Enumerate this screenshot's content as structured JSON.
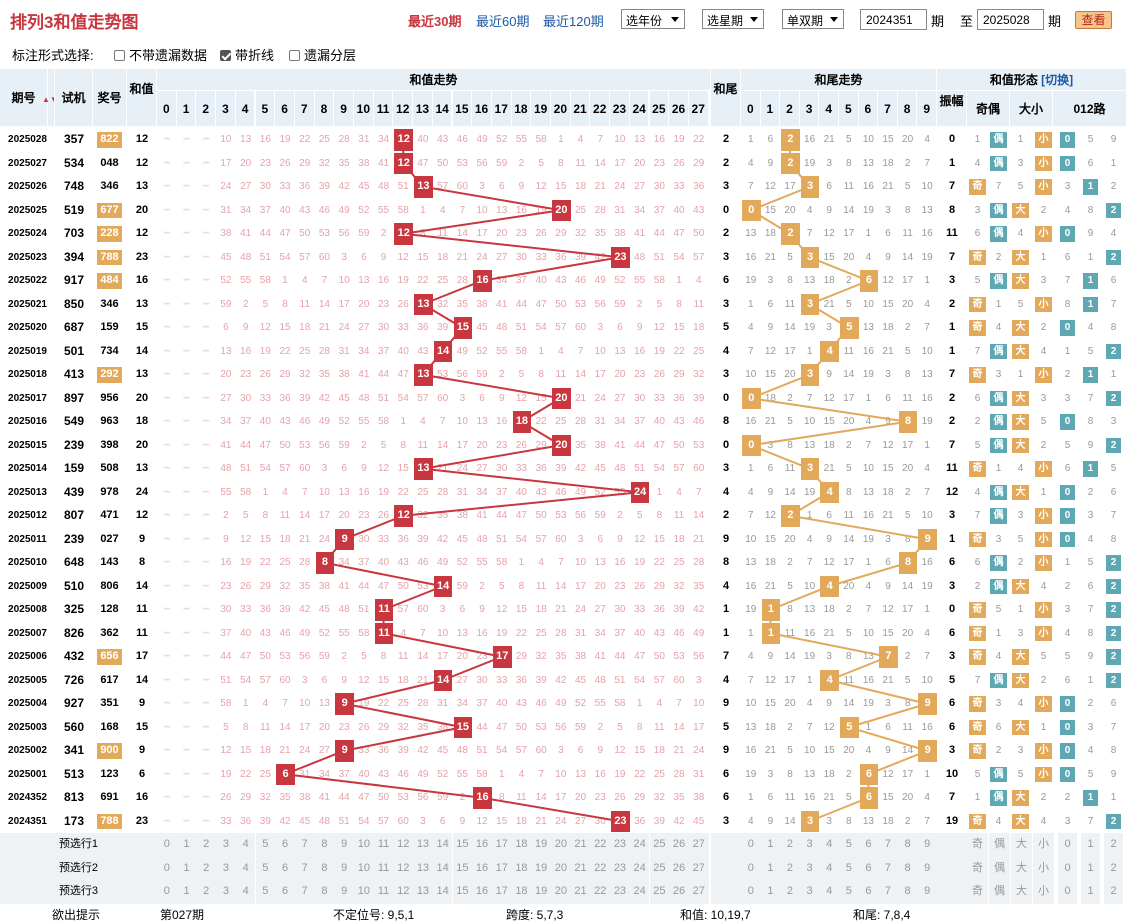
{
  "title": "排列3和值走势图",
  "periods": [
    {
      "label": "最近30期",
      "active": true
    },
    {
      "label": "最近60期",
      "active": false
    },
    {
      "label": "最近120期",
      "active": false
    }
  ],
  "selects": {
    "year": "选年份",
    "week": "选星期",
    "parity": "单双期"
  },
  "range": {
    "from": "2024351",
    "to": "2025028",
    "unit": "期",
    "to_label": "至"
  },
  "view_button": "查看",
  "options": {
    "label": "标注形式选择:",
    "items": [
      {
        "label": "不带遗漏数据",
        "checked": false
      },
      {
        "label": "带折线",
        "checked": true
      },
      {
        "label": "遗漏分层",
        "checked": false
      }
    ]
  },
  "headers": {
    "issue": "期号",
    "trial": "试机",
    "prize": "奖号",
    "sum": "和值",
    "sum_trend": "和值走势",
    "tail": "和尾",
    "tail_trend": "和尾走势",
    "shape": "和值形态",
    "switch": "[切换]",
    "amp": "振幅",
    "oddeven": "奇偶",
    "bigsmall": "大小",
    "road": "012路",
    "odd": "奇",
    "even": "偶",
    "big": "大",
    "small": "小"
  },
  "colors": {
    "red": "#c8363f",
    "orange": "#e3a95a",
    "blue": "#5ea8b4"
  },
  "rows": [
    {
      "issue": "2025028",
      "trial": "357",
      "prize": "822",
      "hl": true,
      "sum": 12,
      "tail": 2,
      "amp": 0,
      "oe": "偶",
      "bs": "小",
      "road": 0
    },
    {
      "issue": "2025027",
      "trial": "534",
      "prize": "048",
      "hl": false,
      "sum": 12,
      "tail": 2,
      "amp": 1,
      "oe": "偶",
      "bs": "小",
      "road": 0
    },
    {
      "issue": "2025026",
      "trial": "748",
      "prize": "346",
      "hl": false,
      "sum": 13,
      "tail": 3,
      "amp": 7,
      "oe": "奇",
      "bs": "小",
      "road": 1
    },
    {
      "issue": "2025025",
      "trial": "519",
      "prize": "677",
      "hl": true,
      "sum": 20,
      "tail": 0,
      "amp": 8,
      "oe": "偶",
      "bs": "大",
      "road": 2
    },
    {
      "issue": "2025024",
      "trial": "703",
      "prize": "228",
      "hl": true,
      "sum": 12,
      "tail": 2,
      "amp": 11,
      "oe": "偶",
      "bs": "小",
      "road": 0
    },
    {
      "issue": "2025023",
      "trial": "394",
      "prize": "788",
      "hl": true,
      "sum": 23,
      "tail": 3,
      "amp": 7,
      "oe": "奇",
      "bs": "大",
      "road": 2
    },
    {
      "issue": "2025022",
      "trial": "917",
      "prize": "484",
      "hl": true,
      "sum": 16,
      "tail": 6,
      "amp": 3,
      "oe": "偶",
      "bs": "大",
      "road": 1
    },
    {
      "issue": "2025021",
      "trial": "850",
      "prize": "346",
      "hl": false,
      "sum": 13,
      "tail": 3,
      "amp": 2,
      "oe": "奇",
      "bs": "小",
      "road": 1
    },
    {
      "issue": "2025020",
      "trial": "687",
      "prize": "159",
      "hl": false,
      "sum": 15,
      "tail": 5,
      "amp": 1,
      "oe": "奇",
      "bs": "大",
      "road": 0
    },
    {
      "issue": "2025019",
      "trial": "501",
      "prize": "734",
      "hl": false,
      "sum": 14,
      "tail": 4,
      "amp": 1,
      "oe": "偶",
      "bs": "大",
      "road": 2
    },
    {
      "issue": "2025018",
      "trial": "413",
      "prize": "292",
      "hl": true,
      "sum": 13,
      "tail": 3,
      "amp": 7,
      "oe": "奇",
      "bs": "小",
      "road": 1
    },
    {
      "issue": "2025017",
      "trial": "897",
      "prize": "956",
      "hl": false,
      "sum": 20,
      "tail": 0,
      "amp": 2,
      "oe": "偶",
      "bs": "大",
      "road": 2
    },
    {
      "issue": "2025016",
      "trial": "549",
      "prize": "963",
      "hl": false,
      "sum": 18,
      "tail": 8,
      "amp": 2,
      "oe": "偶",
      "bs": "大",
      "road": 0
    },
    {
      "issue": "2025015",
      "trial": "239",
      "prize": "398",
      "hl": false,
      "sum": 20,
      "tail": 0,
      "amp": 7,
      "oe": "偶",
      "bs": "大",
      "road": 2
    },
    {
      "issue": "2025014",
      "trial": "159",
      "prize": "508",
      "hl": false,
      "sum": 13,
      "tail": 3,
      "amp": 11,
      "oe": "奇",
      "bs": "小",
      "road": 1
    },
    {
      "issue": "2025013",
      "trial": "439",
      "prize": "978",
      "hl": false,
      "sum": 24,
      "tail": 4,
      "amp": 12,
      "oe": "偶",
      "bs": "大",
      "road": 0
    },
    {
      "issue": "2025012",
      "trial": "807",
      "prize": "471",
      "hl": false,
      "sum": 12,
      "tail": 2,
      "amp": 3,
      "oe": "偶",
      "bs": "小",
      "road": 0
    },
    {
      "issue": "2025011",
      "trial": "239",
      "prize": "027",
      "hl": false,
      "sum": 9,
      "tail": 9,
      "amp": 1,
      "oe": "奇",
      "bs": "小",
      "road": 0
    },
    {
      "issue": "2025010",
      "trial": "648",
      "prize": "143",
      "hl": false,
      "sum": 8,
      "tail": 8,
      "amp": 6,
      "oe": "偶",
      "bs": "小",
      "road": 2
    },
    {
      "issue": "2025009",
      "trial": "510",
      "prize": "806",
      "hl": false,
      "sum": 14,
      "tail": 4,
      "amp": 3,
      "oe": "偶",
      "bs": "大",
      "road": 2
    },
    {
      "issue": "2025008",
      "trial": "325",
      "prize": "128",
      "hl": false,
      "sum": 11,
      "tail": 1,
      "amp": 0,
      "oe": "奇",
      "bs": "小",
      "road": 2
    },
    {
      "issue": "2025007",
      "trial": "826",
      "prize": "362",
      "hl": false,
      "sum": 11,
      "tail": 1,
      "amp": 6,
      "oe": "奇",
      "bs": "小",
      "road": 2
    },
    {
      "issue": "2025006",
      "trial": "432",
      "prize": "656",
      "hl": true,
      "sum": 17,
      "tail": 7,
      "amp": 3,
      "oe": "奇",
      "bs": "大",
      "road": 2
    },
    {
      "issue": "2025005",
      "trial": "726",
      "prize": "617",
      "hl": false,
      "sum": 14,
      "tail": 4,
      "amp": 5,
      "oe": "偶",
      "bs": "大",
      "road": 2
    },
    {
      "issue": "2025004",
      "trial": "927",
      "prize": "351",
      "hl": false,
      "sum": 9,
      "tail": 9,
      "amp": 6,
      "oe": "奇",
      "bs": "小",
      "road": 0
    },
    {
      "issue": "2025003",
      "trial": "560",
      "prize": "168",
      "hl": false,
      "sum": 15,
      "tail": 5,
      "amp": 6,
      "oe": "奇",
      "bs": "大",
      "road": 0
    },
    {
      "issue": "2025002",
      "trial": "341",
      "prize": "900",
      "hl": true,
      "sum": 9,
      "tail": 9,
      "amp": 3,
      "oe": "奇",
      "bs": "小",
      "road": 0
    },
    {
      "issue": "2025001",
      "trial": "513",
      "prize": "123",
      "hl": false,
      "sum": 6,
      "tail": 6,
      "amp": 10,
      "oe": "偶",
      "bs": "小",
      "road": 0
    },
    {
      "issue": "2024352",
      "trial": "813",
      "prize": "691",
      "hl": false,
      "sum": 16,
      "tail": 6,
      "amp": 7,
      "oe": "偶",
      "bs": "大",
      "road": 1
    },
    {
      "issue": "2024351",
      "trial": "173",
      "prize": "788",
      "hl": true,
      "sum": 23,
      "tail": 3,
      "amp": 19,
      "oe": "奇",
      "bs": "大",
      "road": 2
    }
  ],
  "preselect": [
    "预选行1",
    "预选行2",
    "预选行3"
  ],
  "footer": {
    "label": "欲出提示",
    "items": [
      "第027期",
      "不定位号: 9,5,1",
      "跨度: 5,7,3",
      "和值: 10,19,7",
      "和尾: 7,8,4"
    ]
  },
  "chart_data": {
    "type": "line",
    "title": "排列3和值走势图",
    "x": [
      "2025028",
      "2025027",
      "2025026",
      "2025025",
      "2025024",
      "2025023",
      "2025022",
      "2025021",
      "2025020",
      "2025019",
      "2025018",
      "2025017",
      "2025016",
      "2025015",
      "2025014",
      "2025013",
      "2025012",
      "2025011",
      "2025010",
      "2025009",
      "2025008",
      "2025007",
      "2025006",
      "2025005",
      "2025004",
      "2025003",
      "2025002",
      "2025001",
      "2024352",
      "2024351"
    ],
    "series": [
      {
        "name": "和值",
        "values": [
          12,
          12,
          13,
          20,
          12,
          23,
          16,
          13,
          15,
          14,
          13,
          20,
          18,
          20,
          13,
          24,
          12,
          9,
          8,
          14,
          11,
          11,
          17,
          14,
          9,
          15,
          9,
          6,
          16,
          23
        ]
      },
      {
        "name": "和尾",
        "values": [
          2,
          2,
          3,
          0,
          2,
          3,
          6,
          3,
          5,
          4,
          3,
          0,
          8,
          0,
          3,
          4,
          2,
          9,
          8,
          4,
          1,
          1,
          7,
          4,
          9,
          5,
          9,
          6,
          6,
          3
        ]
      }
    ],
    "ylim": [
      0,
      27
    ]
  }
}
